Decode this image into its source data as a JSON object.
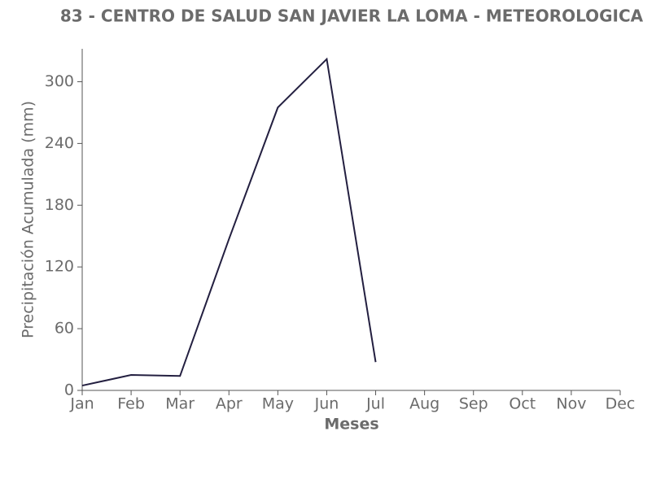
{
  "chart_data": {
    "type": "line",
    "title": "83 - CENTRO DE SALUD SAN JAVIER LA LOMA - METEOROLOGICA",
    "x_label": "Meses",
    "y_label": "Precipitación Acumulada (mm)",
    "categories": [
      "Jan",
      "Feb",
      "Mar",
      "Apr",
      "May",
      "Jun",
      "Jul",
      "Aug",
      "Sep",
      "Oct",
      "Nov",
      "Dec"
    ],
    "values": [
      4.7,
      15,
      14,
      147,
      275,
      322,
      27.5,
      null,
      null,
      null,
      null,
      null
    ],
    "color": "#231f40",
    "ylim": [
      0,
      332
    ],
    "yticks": [
      0,
      60,
      120,
      180,
      240,
      300
    ]
  }
}
